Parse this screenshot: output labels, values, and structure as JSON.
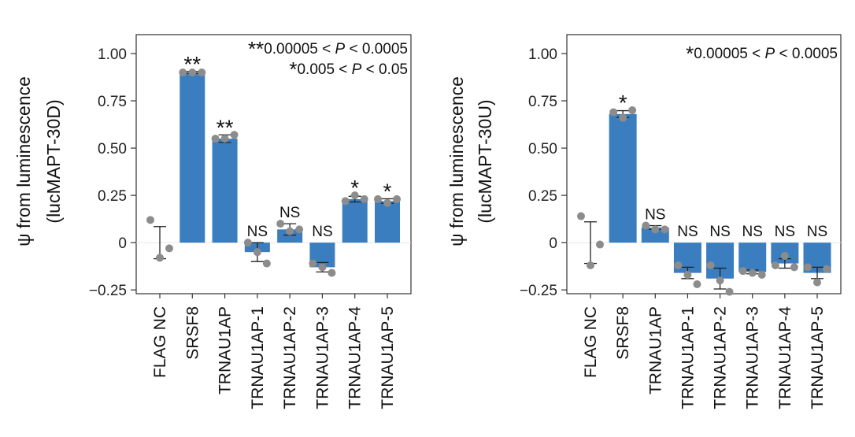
{
  "colors": {
    "bar": "#3a7ebf",
    "dot": "#8c8c8c",
    "axis": "#333333"
  },
  "chart_data": [
    {
      "type": "bar",
      "ylabel": "ψ from luminescence (lucMAPT-30D)",
      "ylabel_lines": [
        "ψ from luminescence",
        "(lucMAPT-30D)"
      ],
      "ylim": [
        -0.27,
        1.1
      ],
      "yticks": [
        -0.25,
        0,
        0.25,
        0.5,
        0.75,
        1.0
      ],
      "ytick_labels": [
        "−0.25",
        "0",
        "0.25",
        "0.50",
        "0.75",
        "1.00"
      ],
      "categories": [
        "FLAG NC",
        "SRSF8",
        "TRNAU1AP",
        "TRNAU1AP-1",
        "TRNAU1AP-2",
        "TRNAU1AP-3",
        "TRNAU1AP-4",
        "TRNAU1AP-5"
      ],
      "values": [
        0.0,
        0.9,
        0.55,
        -0.05,
        0.07,
        -0.13,
        0.23,
        0.22
      ],
      "error": [
        0.085,
        0.005,
        0.02,
        0.05,
        0.03,
        0.025,
        0.015,
        0.012
      ],
      "points": [
        [
          0.12,
          -0.08,
          -0.03
        ],
        [
          0.9,
          0.9,
          0.9
        ],
        [
          0.55,
          0.55,
          0.57
        ],
        [
          0.0,
          -0.05,
          -0.11
        ],
        [
          0.1,
          0.06,
          0.07
        ],
        [
          -0.11,
          -0.13,
          -0.16
        ],
        [
          0.22,
          0.25,
          0.23
        ],
        [
          0.23,
          0.21,
          0.23
        ]
      ],
      "significance": [
        "",
        "**",
        "**",
        "NS",
        "NS",
        "NS",
        "*",
        "*"
      ],
      "legend": [
        {
          "stars": "**",
          "text": "0.00005 < P < 0.0005"
        },
        {
          "stars": "*",
          "text": "0.005 < P < 0.05"
        }
      ]
    },
    {
      "type": "bar",
      "ylabel": "ψ from luminescence (lucMAPT-30U)",
      "ylabel_lines": [
        "ψ from luminescence",
        "(lucMAPT-30U)"
      ],
      "ylim": [
        -0.27,
        1.1
      ],
      "yticks": [
        -0.25,
        0,
        0.25,
        0.5,
        0.75,
        1.0
      ],
      "ytick_labels": [
        "−0.25",
        "0",
        "0.25",
        "0.50",
        "0.75",
        "1.00"
      ],
      "categories": [
        "FLAG NC",
        "SRSF8",
        "TRNAU1AP",
        "TRNAU1AP-1",
        "TRNAU1AP-2",
        "TRNAU1AP-3",
        "TRNAU1AP-4",
        "TRNAU1AP-5"
      ],
      "values": [
        0.0,
        0.68,
        0.08,
        -0.16,
        -0.19,
        -0.155,
        -0.11,
        -0.16
      ],
      "error": [
        0.11,
        0.018,
        0.01,
        0.03,
        0.055,
        0.01,
        0.025,
        0.03
      ],
      "points": [
        [
          0.14,
          -0.12,
          -0.01
        ],
        [
          0.69,
          0.66,
          0.7
        ],
        [
          0.09,
          0.07,
          0.07
        ],
        [
          -0.12,
          -0.17,
          -0.22
        ],
        [
          -0.12,
          -0.2,
          -0.26
        ],
        [
          -0.15,
          -0.16,
          -0.17
        ],
        [
          -0.12,
          -0.07,
          -0.13
        ],
        [
          -0.13,
          -0.21,
          -0.14
        ]
      ],
      "significance": [
        "",
        "*",
        "NS",
        "NS",
        "NS",
        "NS",
        "NS",
        "NS"
      ],
      "legend": [
        {
          "stars": "*",
          "text": "0.00005 < P < 0.0005"
        }
      ]
    }
  ]
}
